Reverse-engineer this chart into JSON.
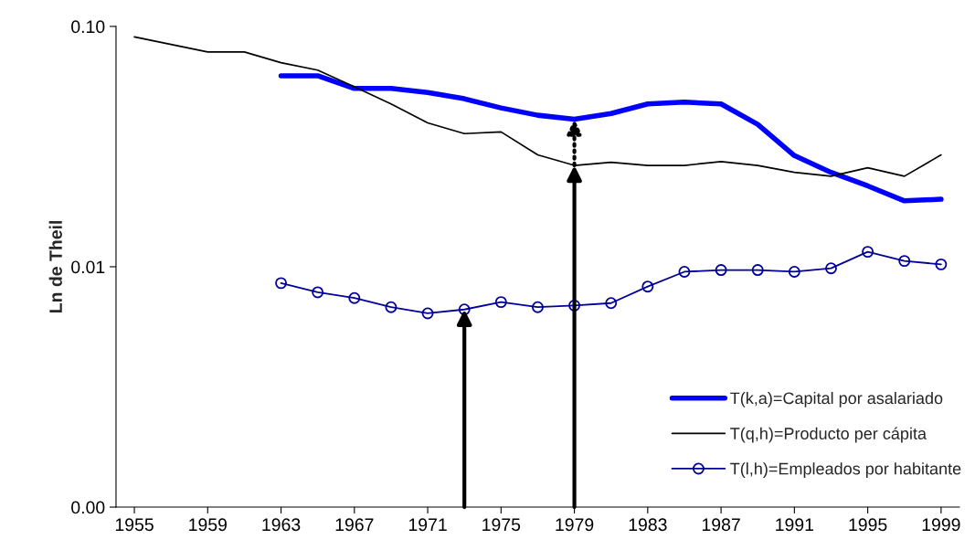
{
  "chart_data": {
    "type": "line",
    "ylabel": "Ln de Theil",
    "log": "y",
    "ylim": [
      0.001,
      0.1
    ],
    "yticks": [
      {
        "value": 0.001,
        "label": "0.00"
      },
      {
        "value": 0.01,
        "label": "0.01"
      },
      {
        "value": 0.1,
        "label": "0.10"
      }
    ],
    "xlim": [
      1954,
      2000
    ],
    "xticks": [
      {
        "value": 1955,
        "label": "1955"
      },
      {
        "value": 1959,
        "label": "1959"
      },
      {
        "value": 1963,
        "label": "1963"
      },
      {
        "value": 1967,
        "label": "1967"
      },
      {
        "value": 1971,
        "label": "1971"
      },
      {
        "value": 1975,
        "label": "1975"
      },
      {
        "value": 1979,
        "label": "1979"
      },
      {
        "value": 1983,
        "label": "1983"
      },
      {
        "value": 1987,
        "label": "1987"
      },
      {
        "value": 1991,
        "label": "1991"
      },
      {
        "value": 1995,
        "label": "1995"
      },
      {
        "value": 1999,
        "label": "1999"
      }
    ],
    "grid": false,
    "legend": "bottom right",
    "series": [
      {
        "name": "T(k,a)=Capital por asalariado",
        "color": "#0000ff",
        "x": [
          1963,
          1965,
          1967,
          1969,
          1971,
          1973,
          1975,
          1977,
          1979,
          1981,
          1983,
          1985,
          1987,
          1989,
          1991,
          1993,
          1995,
          1997,
          1999
        ],
        "values": [
          0.0623,
          0.0623,
          0.0552,
          0.0552,
          0.0531,
          0.05,
          0.0458,
          0.0427,
          0.0411,
          0.0434,
          0.0476,
          0.0484,
          0.0476,
          0.0391,
          0.029,
          0.0247,
          0.0217,
          0.0188,
          0.0191
        ],
        "marker": "none"
      },
      {
        "name": "T(q,h)=Producto per cápita",
        "color": "#000000",
        "x": [
          1955,
          1957,
          1959,
          1961,
          1963,
          1965,
          1967,
          1969,
          1971,
          1973,
          1975,
          1977,
          1979,
          1981,
          1983,
          1985,
          1987,
          1989,
          1991,
          1993,
          1995,
          1997,
          1999
        ],
        "values": [
          0.0904,
          0.0841,
          0.0783,
          0.0783,
          0.0706,
          0.0658,
          0.0561,
          0.0476,
          0.0397,
          0.0358,
          0.0364,
          0.0292,
          0.0264,
          0.0272,
          0.0264,
          0.0264,
          0.0274,
          0.0264,
          0.0247,
          0.0238,
          0.0258,
          0.0238,
          0.0292
        ],
        "marker": "none"
      },
      {
        "name": "T(l,h)=Empleados por habitante",
        "color": "#000099",
        "x": [
          1963,
          1965,
          1967,
          1969,
          1971,
          1973,
          1975,
          1977,
          1979,
          1981,
          1983,
          1985,
          1987,
          1989,
          1991,
          1993,
          1995,
          1997,
          1999
        ],
        "values": [
          0.00855,
          0.00783,
          0.00741,
          0.00679,
          0.0064,
          0.00664,
          0.00713,
          0.00679,
          0.0069,
          0.00706,
          0.00827,
          0.00953,
          0.00969,
          0.00969,
          0.00953,
          0.00985,
          0.01154,
          0.01057,
          0.01023
        ],
        "marker": "circle"
      }
    ]
  }
}
